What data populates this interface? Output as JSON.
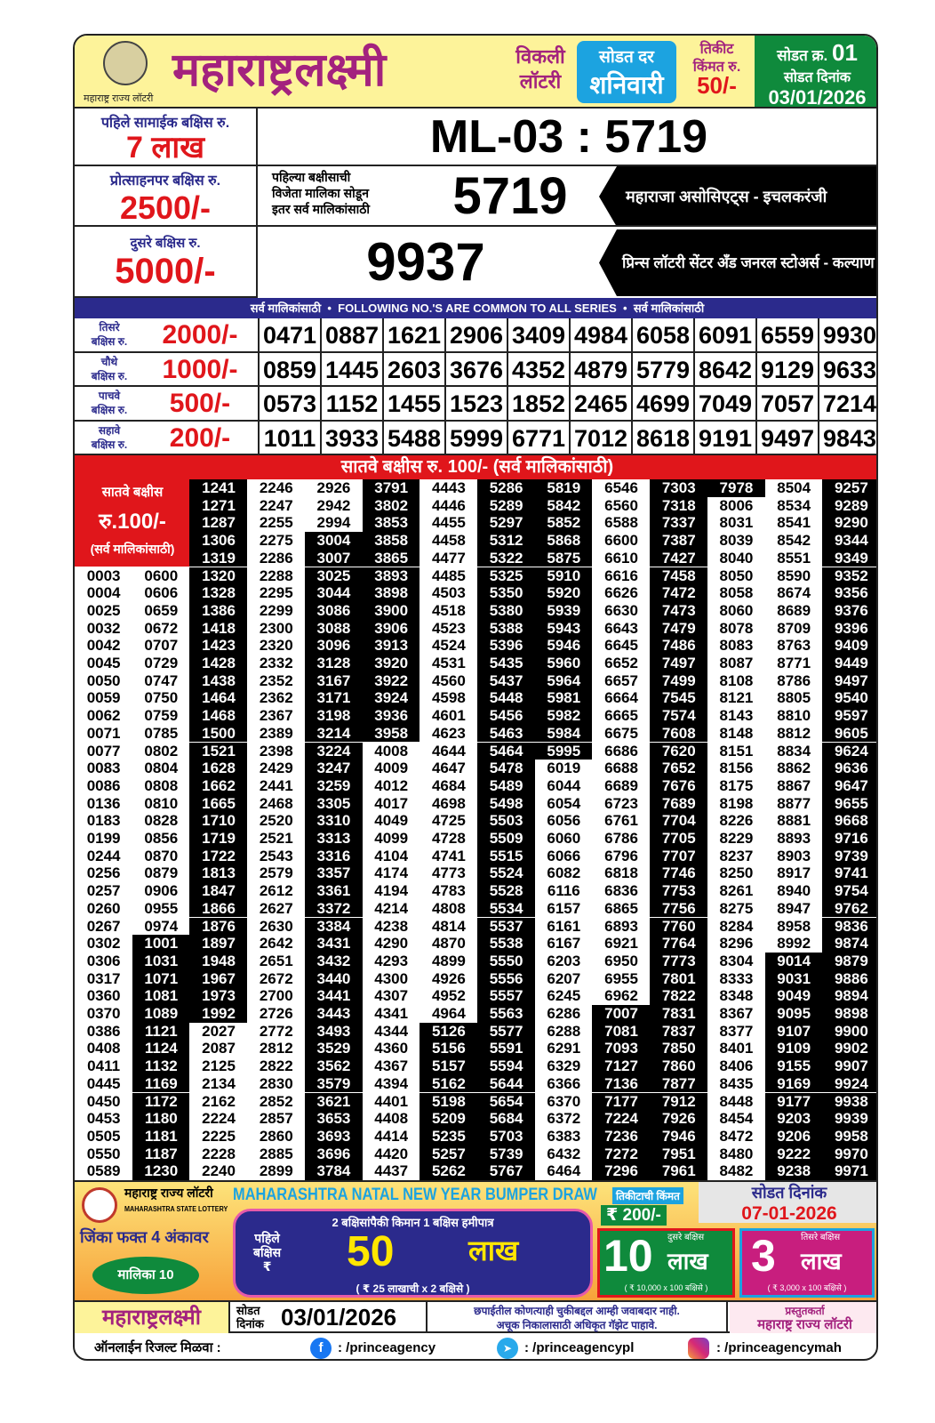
{
  "header": {
    "title": "महाराष्ट्रलक्ष्मी",
    "logo_caption": "महाराष्ट्र राज्य लॉटरी",
    "weekly": "विकली",
    "lottery": "लॉटरी",
    "draw_day_label": "सोडत दर",
    "draw_day": "शनिवारी",
    "ticket_price_label1": "तिकीट",
    "ticket_price_label2": "किंमत रु.",
    "ticket_price": "50/-",
    "draw_no_label": "सोडत क्र.",
    "draw_no": "01",
    "draw_date_label": "सोडत दिनांक",
    "draw_date": "03/01/2026"
  },
  "first_prize": {
    "label": "पहिले सामाईक बक्षिस रु.",
    "amount": "7 लाख",
    "number": "ML-03 : 5719"
  },
  "consolation": {
    "label": "प्रोत्साहनपर बक्षिस रु.",
    "amount": "2500/-",
    "note1": "पहिल्या बक्षीसाची",
    "note2": "विजेता मालिका सोडून",
    "note3": "इतर सर्व मालिकांसाठी",
    "number": "5719",
    "agent": "महाराजा असोसिएट्स - इचलकरंजी"
  },
  "second_prize": {
    "label": "दुसरे बक्षिस रु.",
    "amount": "5000/-",
    "number": "9937",
    "agent": "प्रिन्स लॉटरी सेंटर अँड जनरल स्टोअर्स - कल्याण"
  },
  "common_banner": "सर्व मालिकांसाठी  •  FOLLOWING NO.'S ARE COMMON TO ALL SERIES  •  सर्व मालिकांसाठी",
  "prizes": [
    {
      "label1": "तिसरे",
      "label2": "बक्षिस रु.",
      "amount": "2000/-",
      "numbers": [
        "0471",
        "0887",
        "1621",
        "2906",
        "3409",
        "4984",
        "6058",
        "6091",
        "6559",
        "9930"
      ]
    },
    {
      "label1": "चौथे",
      "label2": "बक्षिस रु.",
      "amount": "1000/-",
      "numbers": [
        "0859",
        "1445",
        "2603",
        "3676",
        "4352",
        "4879",
        "5779",
        "8642",
        "9129",
        "9633"
      ]
    },
    {
      "label1": "पाचवे",
      "label2": "बक्षिस रु.",
      "amount": "500/-",
      "numbers": [
        "0573",
        "1152",
        "1455",
        "1523",
        "1852",
        "2465",
        "4699",
        "7049",
        "7057",
        "7214"
      ]
    },
    {
      "label1": "सहावे",
      "label2": "बक्षिस रु.",
      "amount": "200/-",
      "numbers": [
        "1011",
        "3933",
        "5488",
        "5999",
        "6771",
        "7012",
        "8618",
        "9191",
        "9497",
        "9843"
      ]
    }
  ],
  "seventh": {
    "heading": "सातवे बक्षीस रु. 100/- (सर्व मालिकांसाठी)",
    "label1": "सातवे बक्षीस",
    "label2": "रु.100/-",
    "label3": "(सर्व मालिकांसाठी)",
    "columns": [
      [
        "0003",
        "0004",
        "0025",
        "0032",
        "0042",
        "0045",
        "0050",
        "0059",
        "0062",
        "0071",
        "0077",
        "0083",
        "0086",
        "0136",
        "0183",
        "0199",
        "0244",
        "0256",
        "0257",
        "0260",
        "0267",
        "0302",
        "0306",
        "0317",
        "0360",
        "0370",
        "0386",
        "0408",
        "0411",
        "0445",
        "0450",
        "0453",
        "0505",
        "0550",
        "0589"
      ],
      [
        "0600",
        "0606",
        "0659",
        "0672",
        "0707",
        "0729",
        "0747",
        "0750",
        "0759",
        "0785",
        "0802",
        "0804",
        "0808",
        "0810",
        "0828",
        "0856",
        "0870",
        "0879",
        "0906",
        "0955",
        "0974",
        "1001",
        "1031",
        "1071",
        "1081",
        "1089",
        "1121",
        "1124",
        "1132",
        "1169",
        "1172",
        "1180",
        "1181",
        "1187",
        "1230"
      ],
      [
        "1241",
        "1271",
        "1287",
        "1306",
        "1319",
        "1320",
        "1328",
        "1386",
        "1418",
        "1423",
        "1428",
        "1438",
        "1464",
        "1468",
        "1500",
        "1521",
        "1628",
        "1662",
        "1665",
        "1710",
        "1719",
        "1722",
        "1813",
        "1847",
        "1866",
        "1876",
        "1897",
        "1948",
        "1967",
        "1973",
        "1992",
        "2027",
        "2087",
        "2125",
        "2134",
        "2162",
        "2224",
        "2225",
        "2228",
        "2240"
      ],
      [
        "2246",
        "2247",
        "2255",
        "2275",
        "2286",
        "2288",
        "2295",
        "2299",
        "2300",
        "2320",
        "2332",
        "2352",
        "2362",
        "2367",
        "2389",
        "2398",
        "2429",
        "2441",
        "2468",
        "2520",
        "2521",
        "2543",
        "2579",
        "2612",
        "2627",
        "2630",
        "2642",
        "2651",
        "2672",
        "2700",
        "2726",
        "2772",
        "2812",
        "2822",
        "2830",
        "2852",
        "2857",
        "2860",
        "2885",
        "2899"
      ],
      [
        "2926",
        "2942",
        "2994",
        "3004",
        "3007",
        "3025",
        "3044",
        "3086",
        "3088",
        "3096",
        "3128",
        "3167",
        "3171",
        "3198",
        "3214",
        "3224",
        "3247",
        "3259",
        "3305",
        "3310",
        "3313",
        "3316",
        "3357",
        "3361",
        "3372",
        "3384",
        "3431",
        "3432",
        "3440",
        "3441",
        "3443",
        "3493",
        "3529",
        "3562",
        "3579",
        "3621",
        "3653",
        "3693",
        "3696",
        "3784"
      ],
      [
        "3791",
        "3802",
        "3853",
        "3858",
        "3865",
        "3893",
        "3898",
        "3900",
        "3906",
        "3913",
        "3920",
        "3922",
        "3924",
        "3936",
        "3958",
        "4008",
        "4009",
        "4012",
        "4017",
        "4049",
        "4099",
        "4104",
        "4174",
        "4194",
        "4214",
        "4238",
        "4290",
        "4293",
        "4300",
        "4307",
        "4341",
        "4344",
        "4360",
        "4367",
        "4394",
        "4401",
        "4408",
        "4414",
        "4420",
        "4437"
      ],
      [
        "4443",
        "4446",
        "4455",
        "4458",
        "4477",
        "4485",
        "4503",
        "4518",
        "4523",
        "4524",
        "4531",
        "4560",
        "4598",
        "4601",
        "4623",
        "4644",
        "4647",
        "4684",
        "4698",
        "4725",
        "4728",
        "4741",
        "4773",
        "4783",
        "4808",
        "4814",
        "4870",
        "4899",
        "4926",
        "4952",
        "4964",
        "5126",
        "5156",
        "5157",
        "5162",
        "5198",
        "5209",
        "5235",
        "5257",
        "5262"
      ],
      [
        "5286",
        "5289",
        "5297",
        "5312",
        "5322",
        "5325",
        "5350",
        "5380",
        "5388",
        "5396",
        "5435",
        "5437",
        "5448",
        "5456",
        "5463",
        "5464",
        "5478",
        "5489",
        "5498",
        "5503",
        "5509",
        "5515",
        "5524",
        "5528",
        "5534",
        "5537",
        "5538",
        "5550",
        "5556",
        "5557",
        "5563",
        "5577",
        "5591",
        "5594",
        "5644",
        "5654",
        "5684",
        "5703",
        "5739",
        "5767"
      ],
      [
        "5819",
        "5842",
        "5852",
        "5868",
        "5875",
        "5910",
        "5920",
        "5939",
        "5943",
        "5946",
        "5960",
        "5964",
        "5981",
        "5982",
        "5984",
        "5995",
        "6019",
        "6044",
        "6054",
        "6056",
        "6060",
        "6066",
        "6082",
        "6116",
        "6157",
        "6161",
        "6167",
        "6203",
        "6207",
        "6245",
        "6286",
        "6288",
        "6291",
        "6329",
        "6366",
        "6370",
        "6372",
        "6383",
        "6432",
        "6464"
      ],
      [
        "6546",
        "6560",
        "6588",
        "6600",
        "6610",
        "6616",
        "6626",
        "6630",
        "6643",
        "6645",
        "6652",
        "6657",
        "6664",
        "6665",
        "6675",
        "6686",
        "6688",
        "6689",
        "6723",
        "6761",
        "6786",
        "6796",
        "6818",
        "6836",
        "6865",
        "6893",
        "6921",
        "6950",
        "6955",
        "6962",
        "7007",
        "7081",
        "7093",
        "7127",
        "7136",
        "7177",
        "7224",
        "7236",
        "7272",
        "7296"
      ],
      [
        "7303",
        "7318",
        "7337",
        "7387",
        "7427",
        "7458",
        "7472",
        "7473",
        "7479",
        "7486",
        "7497",
        "7499",
        "7545",
        "7574",
        "7608",
        "7620",
        "7652",
        "7676",
        "7689",
        "7704",
        "7705",
        "7707",
        "7746",
        "7753",
        "7756",
        "7760",
        "7764",
        "7773",
        "7801",
        "7822",
        "7831",
        "7837",
        "7850",
        "7860",
        "7877",
        "7912",
        "7926",
        "7946",
        "7951",
        "7961"
      ],
      [
        "7978",
        "8006",
        "8031",
        "8039",
        "8040",
        "8050",
        "8058",
        "8060",
        "8078",
        "8083",
        "8087",
        "8108",
        "8121",
        "8143",
        "8148",
        "8151",
        "8156",
        "8175",
        "8198",
        "8226",
        "8229",
        "8237",
        "8250",
        "8261",
        "8275",
        "8284",
        "8296",
        "8304",
        "8333",
        "8348",
        "8367",
        "8377",
        "8401",
        "8406",
        "8435",
        "8448",
        "8454",
        "8472",
        "8480",
        "8482"
      ],
      [
        "8504",
        "8534",
        "8541",
        "8542",
        "8551",
        "8590",
        "8674",
        "8689",
        "8709",
        "8763",
        "8771",
        "8786",
        "8805",
        "8810",
        "8812",
        "8834",
        "8862",
        "8867",
        "8877",
        "8881",
        "8893",
        "8903",
        "8917",
        "8940",
        "8947",
        "8958",
        "8992",
        "9014",
        "9031",
        "9049",
        "9095",
        "9107",
        "9109",
        "9155",
        "9169",
        "9177",
        "9203",
        "9206",
        "9222",
        "9238"
      ],
      [
        "9257",
        "9289",
        "9290",
        "9344",
        "9349",
        "9352",
        "9356",
        "9376",
        "9396",
        "9409",
        "9449",
        "9497",
        "9540",
        "9597",
        "9605",
        "9624",
        "9636",
        "9647",
        "9655",
        "9668",
        "9716",
        "9739",
        "9741",
        "9754",
        "9762",
        "9836",
        "9874",
        "9879",
        "9886",
        "9894",
        "9898",
        "9900",
        "9902",
        "9907",
        "9924",
        "9938",
        "9939",
        "9958",
        "9970",
        "9971"
      ]
    ]
  },
  "bumper": {
    "org_mr": "महाराष्ट्र राज्य लॉटरी",
    "org_en": "MAHARASHTRA STATE LOTTERY",
    "title": "MAHARASHTRA NATAL NEW YEAR BUMPER DRAW",
    "ticket_price_label": "तिकीटाची किंमत",
    "ticket_price": "₹ 200/-",
    "draw_date_label": "सोडत दिनांक",
    "draw_date": "07-01-2026",
    "win_line": "जिंका फक्त 4 अंकावर",
    "series": "मालिका 10",
    "guarantee": "2 बक्षिसांपैकी किमान 1 बक्षिस हमीपात्र",
    "first_label1": "पहिले",
    "first_label2": "बक्षिस",
    "rupee": "₹",
    "first_amount": "50",
    "first_unit": "लाख",
    "first_note": "( ₹ 25 लाखाची x 2 बक्षिसे )",
    "second_label": "दुसरे बक्षिस",
    "second_amount": "10",
    "second_unit": "लाख",
    "second_note": "( ₹ 10,000 x 100 बक्षिसे )",
    "third_label": "तिसरे बक्षिस",
    "third_amount": "3",
    "third_unit": "लाख",
    "third_note": "( ₹ 3,000 x 100 बक्षिसे )"
  },
  "footer": {
    "brand": "महाराष्ट्रलक्ष्मी",
    "date_label1": "सोडत",
    "date_label2": "दिनांक",
    "date": "03/01/2026",
    "disclaimer1": "छपाईतील कोणत्याही चुकीबद्दल आम्ही जवाबदार नाही.",
    "disclaimer2": "अचूक निकालासाठी अधिकृत गॅझेट पाहावे.",
    "presenter_label": "प्रस्तुतकर्ता",
    "presenter": "महाराष्ट्र राज्य लॉटरी"
  },
  "online": {
    "label": "ऑनलाईन रिजल्ट मिळवा :",
    "facebook": ": /princeagency",
    "telegram": ": /princeagencypl",
    "instagram": ": /princeagencymah"
  },
  "colors": {
    "magenta": "#a3227e",
    "red": "#e0161b",
    "navy": "#2b2a8c",
    "green": "#0f8a3c",
    "blue": "#1ca3e0",
    "yellow": "#fdf39a"
  }
}
